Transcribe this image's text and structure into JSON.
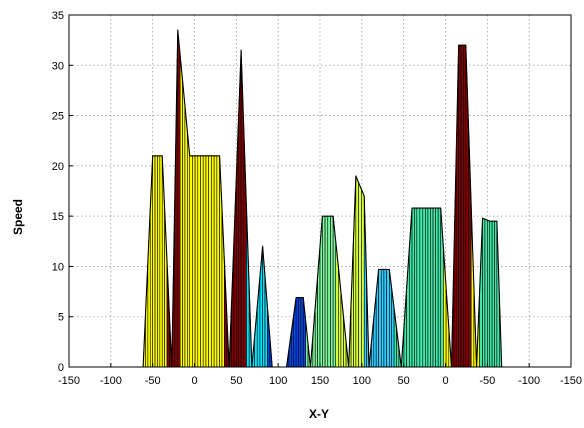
{
  "chart_data": {
    "type": "area",
    "title": "",
    "xlabel": "X-Y",
    "ylabel": "Speed",
    "xlim": [
      0,
      21
    ],
    "ylim": [
      0,
      35
    ],
    "grid": true,
    "x_tick_labels": [
      "-150",
      "-100",
      "-50",
      "0",
      "50",
      "100",
      "150",
      "100",
      "50",
      "0",
      "-50",
      "-100",
      "-150"
    ],
    "y_ticks": [
      0,
      5,
      10,
      15,
      20,
      25,
      30,
      35
    ],
    "profile": {
      "x": [
        3.1,
        3.5,
        3.9,
        4.3,
        4.55,
        5.05,
        5.5,
        6.3,
        6.7,
        7.2,
        7.65,
        8.1,
        8.5,
        9.1,
        9.5,
        9.8,
        10.1,
        10.6,
        11.05,
        11.7,
        12.0,
        12.35,
        12.55,
        12.95,
        13.4,
        13.9,
        14.35,
        14.55,
        14.8,
        15.55,
        16.0,
        16.3,
        16.6,
        17.05,
        17.3,
        17.6,
        17.9,
        18.1,
        18.5
      ],
      "y": [
        0,
        21,
        21,
        0,
        33.5,
        21,
        21,
        21,
        0,
        31.5,
        0,
        12,
        0,
        0,
        6.9,
        6.9,
        0,
        15,
        15,
        0,
        19,
        17,
        0,
        9.7,
        9.7,
        0,
        15.8,
        15.8,
        15.8,
        15.8,
        0,
        32,
        32,
        0,
        14.8,
        14.5,
        14.5,
        0,
        0
      ]
    },
    "colors": {
      "yellow": "#ffff00",
      "dark_red": "#800000",
      "cyan": "#00e5ff",
      "blue": "#0047e6",
      "aqua": "#33ccff",
      "green": "#40e8a8",
      "light_green": "#7cf59a",
      "lime": "#d8ff40",
      "edge": "#000000",
      "grid": "#9a9a9a"
    }
  }
}
